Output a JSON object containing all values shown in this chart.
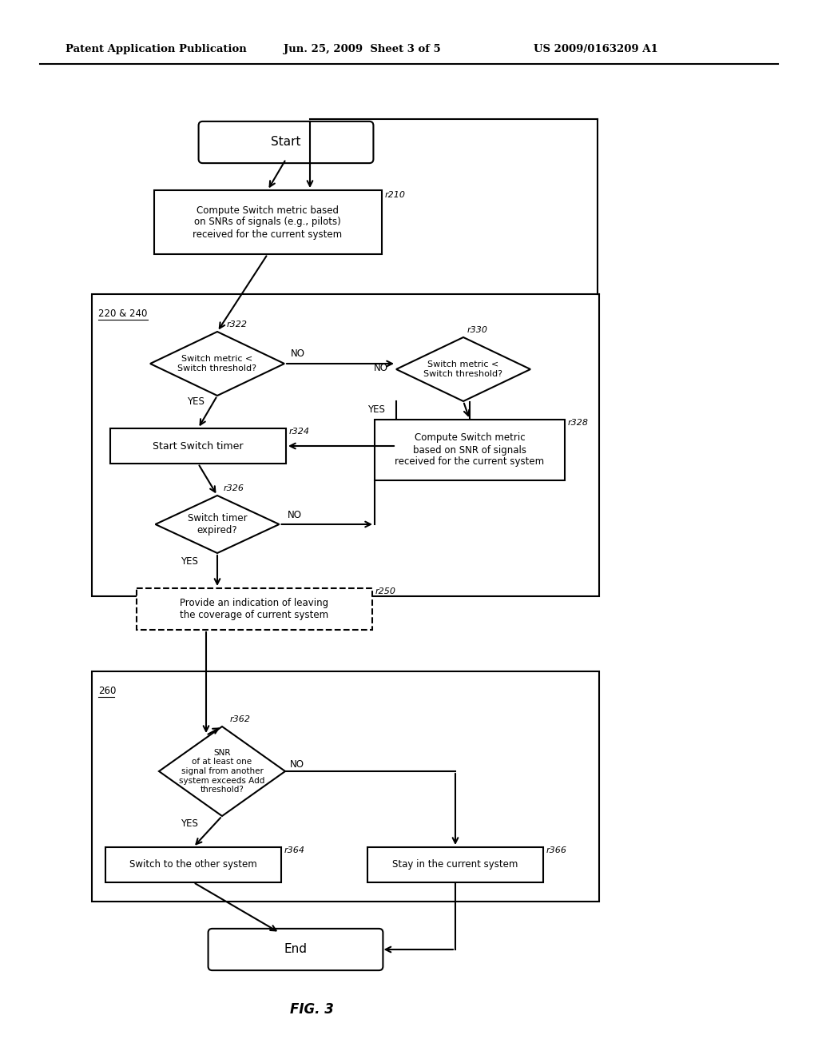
{
  "bg_color": "#ffffff",
  "header_left": "Patent Application Publication",
  "header_mid": "Jun. 25, 2009  Sheet 3 of 5",
  "header_right": "US 2009/0163209 A1",
  "footer_label": "FIG. 3"
}
